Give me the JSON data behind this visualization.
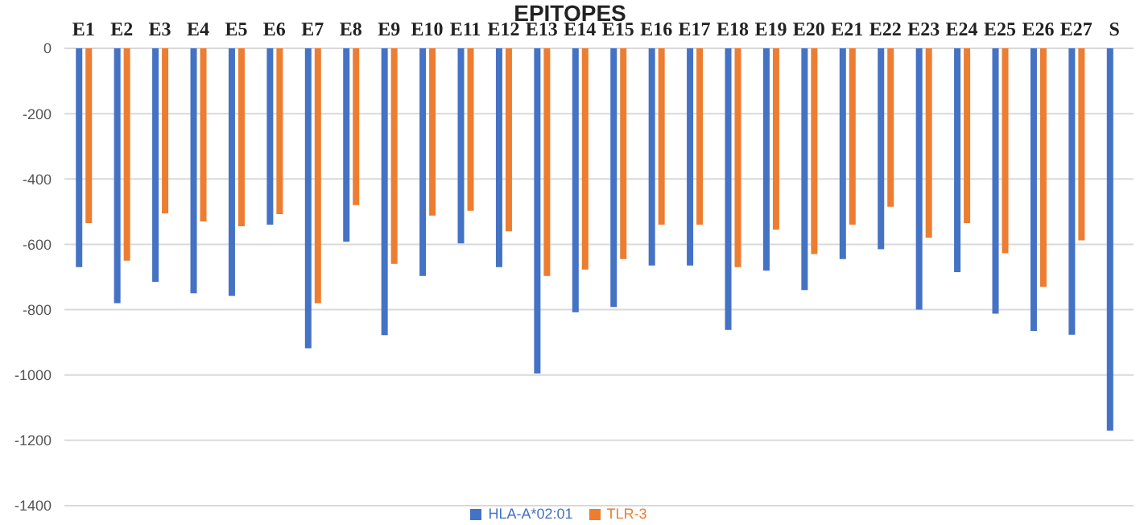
{
  "chart_data": {
    "type": "bar",
    "title": "EPITOPES",
    "categories": [
      "E1",
      "E2",
      "E3",
      "E4",
      "E5",
      "E6",
      "E7",
      "E8",
      "E9",
      "E10",
      "E11",
      "E12",
      "E13",
      "E14",
      "E15",
      "E16",
      "E17",
      "E18",
      "E19",
      "E20",
      "E21",
      "E22",
      "E23",
      "E24",
      "E25",
      "E26",
      "E27",
      "S"
    ],
    "series": [
      {
        "name": "HLA-A*02:01",
        "color": "#4472c4",
        "values": [
          -670,
          -780,
          -715,
          -750,
          -758,
          -540,
          -918,
          -592,
          -878,
          -697,
          -597,
          -670,
          -995,
          -808,
          -792,
          -665,
          -665,
          -862,
          -680,
          -740,
          -645,
          -615,
          -800,
          -685,
          -812,
          -865,
          -877,
          -1170
        ]
      },
      {
        "name": "TLR-3",
        "color": "#ed7d31",
        "values": [
          -535,
          -650,
          -505,
          -530,
          -545,
          -508,
          -780,
          -480,
          -660,
          -512,
          -497,
          -560,
          -697,
          -677,
          -645,
          -540,
          -540,
          -670,
          -555,
          -630,
          -540,
          -485,
          -580,
          -535,
          -627,
          -730,
          -588,
          null
        ]
      }
    ],
    "ylim": [
      -1400,
      0
    ],
    "yticks": [
      -1400,
      -1200,
      -1000,
      -800,
      -600,
      -400,
      -200,
      0
    ],
    "grid": "y",
    "legend": "bottom"
  }
}
